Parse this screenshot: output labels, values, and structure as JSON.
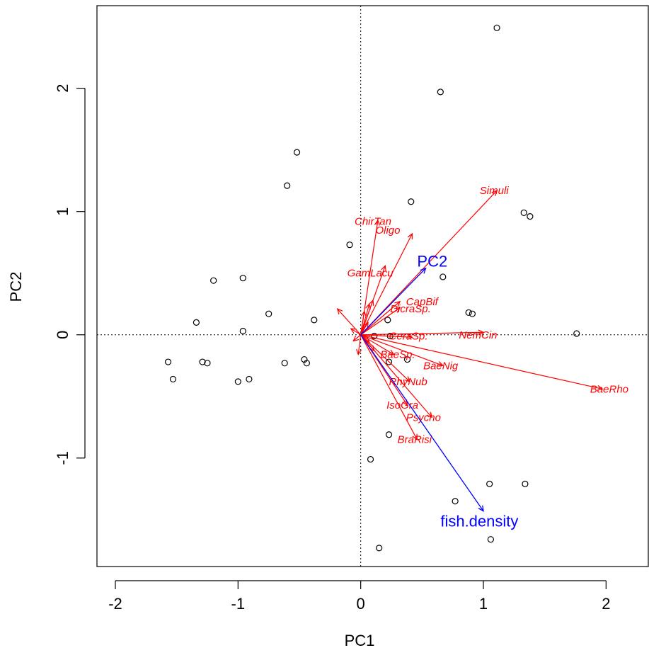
{
  "chart_data": {
    "type": "scatter",
    "xlabel": "PC1",
    "ylabel": "PC2",
    "xlim": [
      -2.15,
      2.35
    ],
    "ylim": [
      -1.88,
      2.67
    ],
    "xticks": [
      -2,
      -1,
      0,
      1,
      2
    ],
    "yticks": [
      -1,
      0,
      1,
      2
    ],
    "zero_lines": true,
    "points": [
      {
        "x": 1.11,
        "y": 2.49
      },
      {
        "x": 0.65,
        "y": 1.97
      },
      {
        "x": -0.52,
        "y": 1.48
      },
      {
        "x": -0.6,
        "y": 1.21
      },
      {
        "x": 0.41,
        "y": 1.08
      },
      {
        "x": 1.33,
        "y": 0.99
      },
      {
        "x": 1.38,
        "y": 0.96
      },
      {
        "x": -0.09,
        "y": 0.73
      },
      {
        "x": 0.67,
        "y": 0.47
      },
      {
        "x": -0.96,
        "y": 0.46
      },
      {
        "x": -1.2,
        "y": 0.44
      },
      {
        "x": 0.88,
        "y": 0.18
      },
      {
        "x": 0.91,
        "y": 0.17
      },
      {
        "x": -0.75,
        "y": 0.17
      },
      {
        "x": 0.22,
        "y": 0.12
      },
      {
        "x": -0.38,
        "y": 0.12
      },
      {
        "x": -1.34,
        "y": 0.1
      },
      {
        "x": -0.96,
        "y": 0.03
      },
      {
        "x": 0.11,
        "y": -0.01
      },
      {
        "x": 0.24,
        "y": -0.01
      },
      {
        "x": 1.76,
        "y": 0.01
      },
      {
        "x": 0.38,
        "y": -0.2
      },
      {
        "x": -0.46,
        "y": -0.2
      },
      {
        "x": -0.44,
        "y": -0.23
      },
      {
        "x": -0.62,
        "y": -0.23
      },
      {
        "x": 0.23,
        "y": -0.22
      },
      {
        "x": -1.57,
        "y": -0.22
      },
      {
        "x": -1.29,
        "y": -0.22
      },
      {
        "x": -1.25,
        "y": -0.23
      },
      {
        "x": -1.53,
        "y": -0.36
      },
      {
        "x": -0.91,
        "y": -0.36
      },
      {
        "x": -1.0,
        "y": -0.38
      },
      {
        "x": 0.23,
        "y": -0.81
      },
      {
        "x": 0.08,
        "y": -1.01
      },
      {
        "x": 1.05,
        "y": -1.21
      },
      {
        "x": 1.34,
        "y": -1.21
      },
      {
        "x": 0.77,
        "y": -1.35
      },
      {
        "x": 1.06,
        "y": -1.66
      },
      {
        "x": 0.15,
        "y": -1.73
      }
    ],
    "species_arrows": [
      {
        "label": "Simuli",
        "x": 1.11,
        "y": 1.17,
        "lx": 0.97,
        "ly": 1.17
      },
      {
        "label": "ChirTan",
        "x": 0.14,
        "y": 0.93,
        "lx": -0.05,
        "ly": 0.92
      },
      {
        "label": "Oligo",
        "x": 0.42,
        "y": 0.82,
        "lx": 0.12,
        "ly": 0.85
      },
      {
        "label": "GamLacu",
        "x": 0.2,
        "y": 0.56,
        "lx": -0.11,
        "ly": 0.5
      },
      {
        "label": "CapBif",
        "x": 0.32,
        "y": 0.27,
        "lx": 0.37,
        "ly": 0.27
      },
      {
        "label": "DicraSp.",
        "x": 0.32,
        "y": 0.22,
        "lx": 0.24,
        "ly": 0.21
      },
      {
        "label": "NemCin",
        "x": 1.0,
        "y": 0.02,
        "lx": 0.8,
        "ly": 0.0
      },
      {
        "label": "CeraSp.",
        "x": 0.42,
        "y": -0.02,
        "lx": 0.23,
        "ly": -0.01
      },
      {
        "label": "BaeSp.",
        "x": 0.27,
        "y": -0.16,
        "lx": 0.16,
        "ly": -0.16
      },
      {
        "label": "BaeNig",
        "x": 0.67,
        "y": -0.25,
        "lx": 0.51,
        "ly": -0.25
      },
      {
        "label": "BaeRho",
        "x": 1.97,
        "y": -0.44,
        "lx": 1.87,
        "ly": -0.44
      },
      {
        "label": "RhyNub",
        "x": 0.4,
        "y": -0.38,
        "lx": 0.23,
        "ly": -0.38
      },
      {
        "label": "IsoGra",
        "x": 0.38,
        "y": -0.57,
        "lx": 0.21,
        "ly": -0.57
      },
      {
        "label": "Psycho",
        "x": 0.58,
        "y": -0.67,
        "lx": 0.37,
        "ly": -0.67
      },
      {
        "label": "BraRisi",
        "x": 0.46,
        "y": -0.85,
        "lx": 0.3,
        "ly": -0.85
      },
      {
        "label": "",
        "x": -0.19,
        "y": 0.21,
        "lx": null,
        "ly": null
      },
      {
        "label": "",
        "x": 0.1,
        "y": 0.28,
        "lx": null,
        "ly": null
      },
      {
        "label": "",
        "x": 0.07,
        "y": 0.25,
        "lx": null,
        "ly": null
      },
      {
        "label": "",
        "x": -0.08,
        "y": 0.05,
        "lx": null,
        "ly": null
      },
      {
        "label": "",
        "x": -0.06,
        "y": -0.05,
        "lx": null,
        "ly": null
      },
      {
        "label": "",
        "x": -0.02,
        "y": -0.16,
        "lx": null,
        "ly": null
      },
      {
        "label": "",
        "x": 0.07,
        "y": -0.06,
        "lx": null,
        "ly": null
      },
      {
        "label": "",
        "x": 0.11,
        "y": -0.13,
        "lx": null,
        "ly": null
      },
      {
        "label": "",
        "x": 0.06,
        "y": 0.1,
        "lx": null,
        "ly": null
      },
      {
        "label": "",
        "x": 0.03,
        "y": 0.19,
        "lx": null,
        "ly": null
      }
    ],
    "env_arrows": [
      {
        "label": "PC2",
        "x": 0.53,
        "y": 0.54,
        "lx": 0.46,
        "ly": 0.6
      },
      {
        "label": "fish.density",
        "x": 1.0,
        "y": -1.43,
        "lx": 0.65,
        "ly": -1.51
      }
    ],
    "colors": {
      "points": "#000000",
      "species": "#ff0000",
      "env": "#0000ff",
      "axes": "#000000"
    }
  }
}
